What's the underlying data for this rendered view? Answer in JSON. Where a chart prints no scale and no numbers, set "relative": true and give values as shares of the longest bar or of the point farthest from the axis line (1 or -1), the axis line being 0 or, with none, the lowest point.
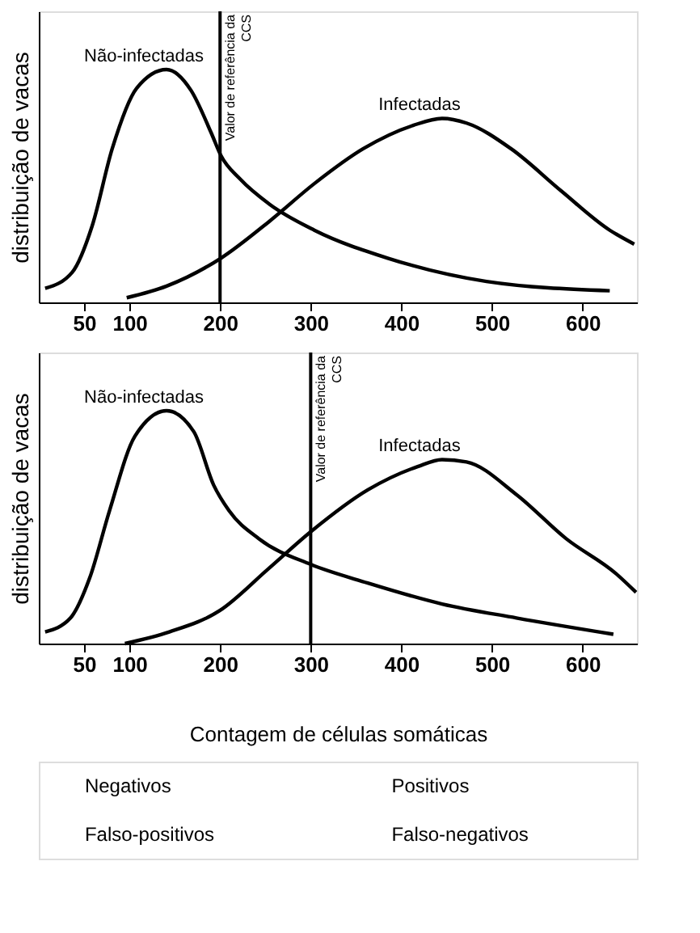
{
  "chart_data": [
    {
      "type": "line",
      "relative": true,
      "ylabel": "distribuição de vacas",
      "xlim": [
        0,
        660
      ],
      "xticks": [
        50,
        100,
        200,
        300,
        400,
        500,
        600
      ],
      "series": [
        {
          "name": "Não-infectadas",
          "color": "#000000",
          "x": [
            7,
            37,
            59,
            81,
            108,
            141,
            168,
            190,
            201,
            222,
            255,
            304,
            385,
            494,
            630
          ],
          "values": [
            0.06,
            0.13,
            0.33,
            0.66,
            0.92,
            1.0,
            0.91,
            0.73,
            0.63,
            0.53,
            0.42,
            0.31,
            0.19,
            0.09,
            0.05
          ]
        },
        {
          "name": "Infectadas",
          "color": "#000000",
          "x": [
            97,
            141,
            201,
            255,
            304,
            358,
            413,
            445,
            472,
            521,
            576,
            630,
            657
          ],
          "values": [
            0.02,
            0.07,
            0.19,
            0.35,
            0.51,
            0.66,
            0.76,
            0.79,
            0.77,
            0.66,
            0.48,
            0.31,
            0.25
          ]
        }
      ],
      "ref_lines": [
        {
          "axis": "x",
          "value": 200,
          "label": "Valor de referência da CCS",
          "color": "#000000"
        }
      ]
    },
    {
      "type": "line",
      "relative": true,
      "ylabel": "distribuição de vacas",
      "xlabel": "Contagem de células somáticas",
      "xlim": [
        0,
        660
      ],
      "xticks": [
        50,
        100,
        200,
        300,
        400,
        500,
        600
      ],
      "series": [
        {
          "name": "Não-infectadas",
          "color": "#000000",
          "x": [
            7,
            35,
            56,
            78,
            106,
            141,
            171,
            193,
            210,
            243,
            300,
            363,
            445,
            527,
            634
          ],
          "values": [
            0.05,
            0.11,
            0.28,
            0.57,
            0.89,
            1.0,
            0.91,
            0.68,
            0.57,
            0.45,
            0.34,
            0.26,
            0.17,
            0.11,
            0.04
          ]
        },
        {
          "name": "Infectadas",
          "color": "#000000",
          "x": [
            95,
            144,
            199,
            253,
            300,
            363,
            418,
            445,
            472,
            527,
            582,
            637,
            659
          ],
          "values": [
            0.0,
            0.05,
            0.14,
            0.32,
            0.48,
            0.66,
            0.76,
            0.79,
            0.78,
            0.64,
            0.45,
            0.3,
            0.22
          ]
        }
      ],
      "ref_lines": [
        {
          "axis": "x",
          "value": 300,
          "label": "Valor de referência da CCS",
          "color": "#000000"
        }
      ]
    },
    {
      "type": "other",
      "annotations": [
        "Negativos",
        "Positivos",
        "Falso-positivos",
        "Falso-negativos"
      ]
    }
  ]
}
